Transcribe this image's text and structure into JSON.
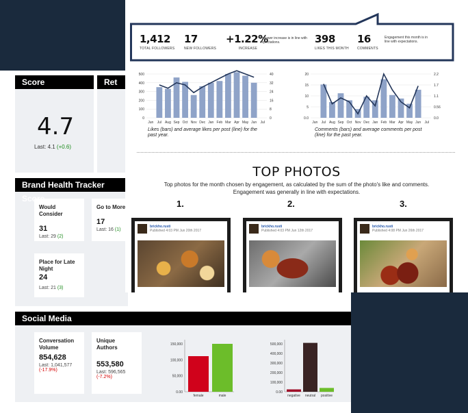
{
  "score_panel": {
    "header": "Score",
    "value": "4.7",
    "last_label": "Last: 4.1",
    "last_delta": "(+0.6)"
  },
  "ret_panel": {
    "header": "Ret"
  },
  "brand": {
    "header": "Brand Health Tracker Score",
    "cards": [
      {
        "label": "Would Consider",
        "value": "31",
        "last": "Last: 29",
        "delta": "(2)"
      },
      {
        "label": "Go to More O",
        "value": "17",
        "last": "Last: 16",
        "delta": "(1)"
      },
      {
        "label": "Place for Late Night",
        "value": "24",
        "last": "Last: 21",
        "delta": "(3)"
      }
    ]
  },
  "social": {
    "header": "Social Media",
    "cards": [
      {
        "label": "Conversation Volume",
        "value": "854,628",
        "last": "Last: 1,041,577",
        "delta": "(-17.9%)"
      },
      {
        "label": "Unique Authors",
        "value": "553,580",
        "last": "Last: 596,565",
        "delta": "(-7.2%)"
      }
    ]
  },
  "stats_left": [
    {
      "value": "1,412",
      "label": "TOTAL FOLLOWERS"
    },
    {
      "value": "17",
      "label": "NEW FOLLOWERS"
    },
    {
      "value": "+1.22%",
      "label": "INCREASE"
    }
  ],
  "stats_left_note": "Follower increase is in line with expectations.",
  "stats_right": [
    {
      "value": "398",
      "label": "LIKES THIS MONTH"
    },
    {
      "value": "16",
      "label": "COMMENTS"
    }
  ],
  "stats_right_note": "Engagement this month is in line with expectations.",
  "top_photos": {
    "title": "TOP PHOTOS",
    "subtitle_line1": "Top photos for the month chosen by engagement, as calculated by the sum of the photo's like and comments.",
    "subtitle_line2": "Engagement was generally in line with expectations.",
    "items": [
      {
        "rank": "1.",
        "name": "brickho.rusti",
        "time": "Published 4:03 PM Jun 20th 2017"
      },
      {
        "rank": "2.",
        "name": "brickho.rusti",
        "time": "Published 4:03 PM Jun 12th 2017"
      },
      {
        "rank": "3.",
        "name": "brickho.rusti",
        "time": "Published 4:08 PM Jun 26th 2017"
      }
    ]
  },
  "colors": {
    "navy": "#1a2a3d",
    "bar_blue": "#8fa3c8",
    "line_navy": "#23365a",
    "red": "#d0021b",
    "green": "#6cbd2a",
    "dark_brown": "#3a2424"
  },
  "chart_data": [
    {
      "type": "bar",
      "caption": "Likes (bars) and average likes per post (line) for the past year.",
      "categories": [
        "Jun",
        "Jul",
        "Aug",
        "Sep",
        "Oct",
        "Nov",
        "Dec",
        "Jan",
        "Feb",
        "Mar",
        "Apr",
        "May",
        "Jun",
        "Jul"
      ],
      "bars": [
        null,
        350,
        330,
        460,
        410,
        260,
        360,
        400,
        420,
        500,
        520,
        480,
        400,
        null
      ],
      "line": [
        null,
        30,
        27,
        32,
        30,
        23,
        28,
        32,
        36,
        40,
        43,
        40,
        37,
        null
      ],
      "ylim_left": [
        0,
        500
      ],
      "yticks_left": [
        "500",
        "400",
        "300",
        "200",
        "100",
        "0"
      ],
      "ylim_right": [
        0,
        40
      ],
      "yticks_right": [
        "40",
        "32",
        "24",
        "16",
        "8",
        "0"
      ]
    },
    {
      "type": "bar",
      "caption": "Comments (bars) and average comments per post (line) for the past year.",
      "categories": [
        "Jun",
        "Jul",
        "Aug",
        "Sep",
        "Oct",
        "Nov",
        "Dec",
        "Jan",
        "Feb",
        "Mar",
        "Apr",
        "May",
        "Jun",
        "Jul"
      ],
      "bars": [
        null,
        19,
        9,
        14,
        10,
        5,
        12,
        10,
        22,
        13,
        11,
        8,
        16,
        null
      ],
      "line": [
        null,
        1.7,
        0.7,
        1.0,
        0.8,
        0.2,
        1.1,
        0.6,
        2.2,
        1.4,
        0.8,
        0.5,
        1.6,
        null
      ],
      "ylim_left": [
        0,
        25
      ],
      "yticks_left": [
        "20",
        "15",
        "10",
        "5",
        "0.0"
      ],
      "ylim_right": [
        0,
        2.2
      ],
      "yticks_right": [
        "2.2",
        "1.7",
        "1.1",
        "0.56",
        "0.0"
      ]
    },
    {
      "type": "bar",
      "categories": [
        "female",
        "male"
      ],
      "values": [
        130000,
        175000
      ],
      "colors": [
        "#d0021b",
        "#6cbd2a"
      ],
      "ylim": [
        0,
        175000
      ],
      "yticks": [
        "150,000",
        "100,000",
        "50,000",
        "0.00"
      ]
    },
    {
      "type": "bar",
      "categories": [
        "negative",
        "neutral",
        "positive"
      ],
      "values": [
        25000,
        510000,
        40000
      ],
      "colors": [
        "#a0102a",
        "#3a2424",
        "#6cbd2a"
      ],
      "ylim": [
        0,
        500000
      ],
      "yticks": [
        "500,000",
        "400,000",
        "300,000",
        "200,000",
        "100,000",
        "0.00"
      ]
    }
  ]
}
